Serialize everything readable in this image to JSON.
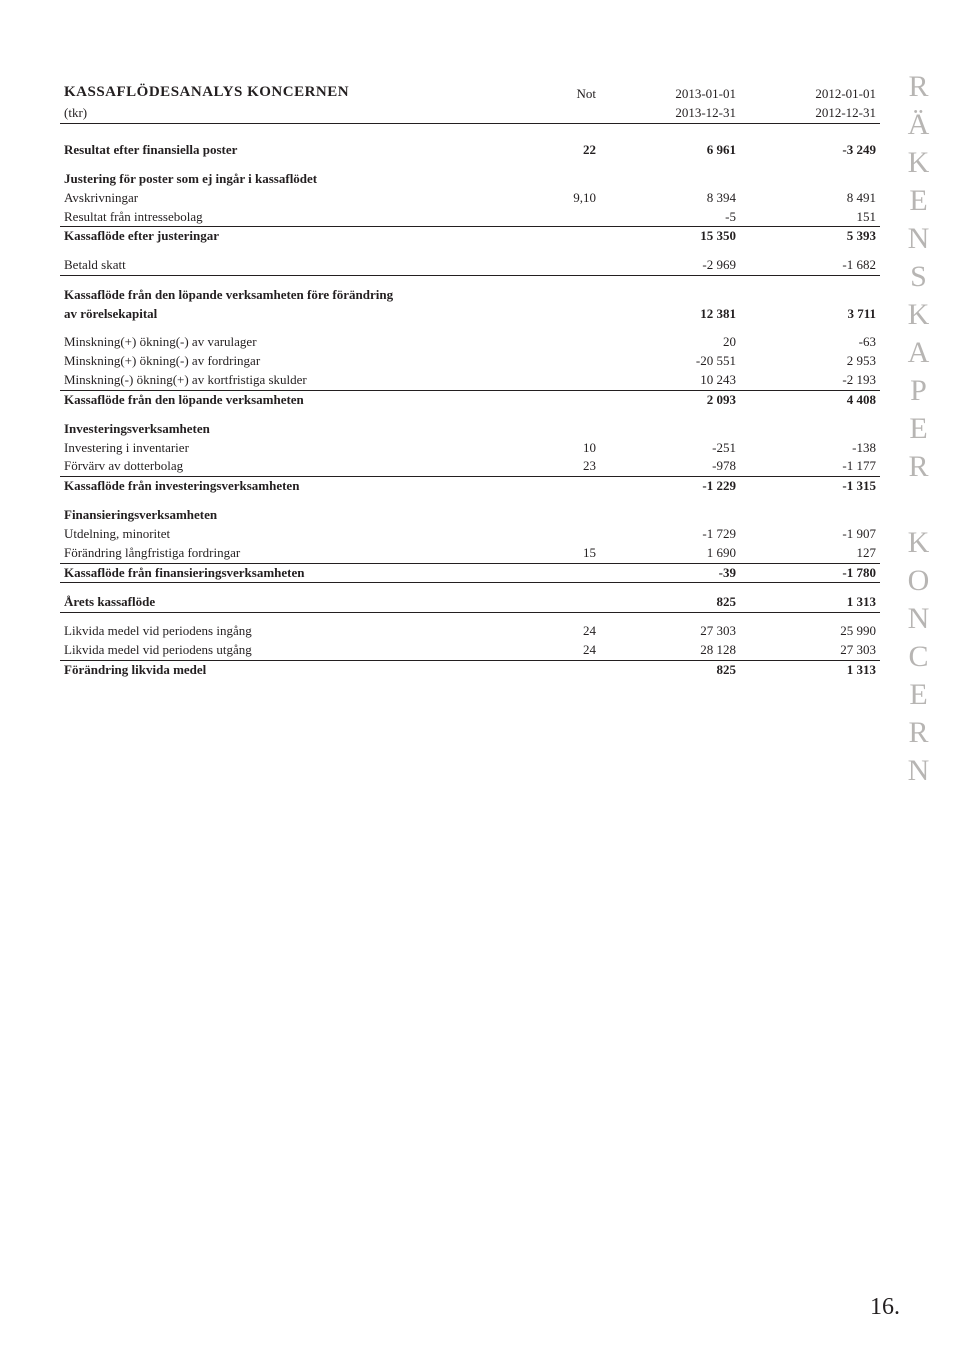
{
  "sideText": "RÄKENSKAPER KONCERN",
  "pageNumber": "16.",
  "header": {
    "title": "KASSAFLÖDESANALYS KONCERNEN",
    "unit": "(tkr)",
    "notLabel": "Not",
    "periodA_top": "2013-01-01",
    "periodA_bot": "2013-12-31",
    "periodB_top": "2012-01-01",
    "periodB_bot": "2012-12-31"
  },
  "rows": [
    {
      "type": "spacer-md"
    },
    {
      "label": "Resultat efter finansiella poster",
      "not": "22",
      "a": "6 961",
      "b": "-3 249",
      "bold": true
    },
    {
      "type": "spacer-sm"
    },
    {
      "label": "Justering för poster som ej ingår i kassaflödet",
      "bold": true
    },
    {
      "label": "Avskrivningar",
      "not": "9,10",
      "a": "8 394",
      "b": "8 491"
    },
    {
      "label": "Resultat från intressebolag",
      "a": "-5",
      "b": "151",
      "rule": true
    },
    {
      "label": "Kassaflöde efter justeringar",
      "a": "15 350",
      "b": "5 393",
      "bold": true
    },
    {
      "type": "spacer-sm"
    },
    {
      "label": "Betald skatt",
      "a": "-2 969",
      "b": "-1 682",
      "rule": true
    },
    {
      "type": "spacer-sm"
    },
    {
      "label": "Kassaflöde från den löpande verksamheten före förändring",
      "bold": true
    },
    {
      "label": "av rörelsekapital",
      "a": "12 381",
      "b": "3 711",
      "bold": true
    },
    {
      "type": "spacer-sm"
    },
    {
      "label": "Minskning(+) ökning(-) av varulager",
      "a": "20",
      "b": "-63"
    },
    {
      "label": "Minskning(+) ökning(-) av fordringar",
      "a": "-20 551",
      "b": "2 953"
    },
    {
      "label": "Minskning(-) ökning(+) av kortfristiga skulder",
      "a": "10 243",
      "b": "-2 193",
      "rule": true
    },
    {
      "label": "Kassaflöde från den löpande verksamheten",
      "a": "2 093",
      "b": "4 408",
      "bold": true
    },
    {
      "type": "spacer-sm"
    },
    {
      "label": "Investeringsverksamheten",
      "bold": true
    },
    {
      "label": "Investering i inventarier",
      "not": "10",
      "a": "-251",
      "b": "-138"
    },
    {
      "label": "Förvärv av dotterbolag",
      "not": "23",
      "a": "-978",
      "b": "-1 177",
      "rule": true
    },
    {
      "label": "Kassaflöde från investeringsverksamheten",
      "a": "-1 229",
      "b": "-1 315",
      "bold": true
    },
    {
      "type": "spacer-sm"
    },
    {
      "label": "Finansieringsverksamheten",
      "bold": true
    },
    {
      "label": "Utdelning, minoritet",
      "a": "-1 729",
      "b": "-1 907"
    },
    {
      "label": "Förändring långfristiga fordringar",
      "not": "15",
      "a": "1 690",
      "b": "127",
      "rule": true
    },
    {
      "label": "Kassaflöde från finansieringsverksamheten",
      "a": "-39",
      "b": "-1 780",
      "bold": true,
      "rule": true
    },
    {
      "type": "spacer-sm"
    },
    {
      "label": "Årets kassaflöde",
      "a": "825",
      "b": "1 313",
      "bold": true,
      "rule": true
    },
    {
      "type": "spacer-sm"
    },
    {
      "label": "Likvida medel vid periodens ingång",
      "not": "24",
      "a": "27 303",
      "b": "25 990"
    },
    {
      "label": "Likvida medel vid periodens utgång",
      "not": "24",
      "a": "28 128",
      "b": "27 303",
      "rule": true
    },
    {
      "label": "Förändring likvida medel",
      "a": "825",
      "b": "1 313",
      "bold": true
    }
  ]
}
